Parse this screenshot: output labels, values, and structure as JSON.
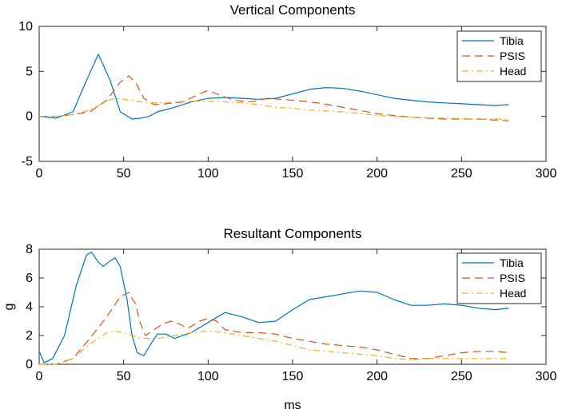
{
  "chart_data": [
    {
      "type": "line",
      "title": "Vertical Components",
      "xlabel": "",
      "ylabel": "",
      "xlim": [
        0,
        300
      ],
      "ylim": [
        -5,
        10
      ],
      "xticks": [
        0,
        50,
        100,
        150,
        200,
        250,
        300
      ],
      "yticks": [
        -5,
        0,
        5,
        10
      ],
      "grid": false,
      "legend_position": "top-right",
      "series": [
        {
          "name": "Tibia",
          "color": "#0072BD",
          "dash": "solid",
          "x": [
            0,
            10,
            20,
            28,
            35,
            42,
            48,
            55,
            60,
            65,
            70,
            80,
            90,
            100,
            110,
            120,
            130,
            140,
            150,
            160,
            170,
            180,
            190,
            200,
            210,
            220,
            230,
            240,
            250,
            260,
            270,
            278
          ],
          "y": [
            0,
            -0.2,
            0.5,
            4.0,
            6.9,
            4.0,
            0.5,
            -0.3,
            -0.2,
            0.0,
            0.5,
            1.0,
            1.6,
            2.0,
            2.1,
            2.0,
            1.9,
            2.0,
            2.5,
            3.0,
            3.2,
            3.1,
            2.8,
            2.4,
            2.0,
            1.8,
            1.6,
            1.5,
            1.4,
            1.3,
            1.2,
            1.3
          ]
        },
        {
          "name": "PSIS",
          "color": "#D95319",
          "dash": "dash",
          "x": [
            0,
            10,
            20,
            30,
            40,
            48,
            53,
            57,
            62,
            68,
            75,
            85,
            95,
            100,
            105,
            115,
            125,
            135,
            150,
            165,
            180,
            200,
            220,
            240,
            260,
            278
          ],
          "y": [
            0,
            0,
            0.2,
            0.5,
            1.8,
            3.8,
            4.5,
            3.8,
            2.0,
            1.3,
            1.4,
            1.6,
            2.5,
            2.9,
            2.5,
            1.8,
            1.6,
            2.0,
            1.8,
            1.5,
            1.0,
            0.3,
            -0.1,
            -0.3,
            -0.3,
            -0.5
          ]
        },
        {
          "name": "Head",
          "color": "#EDB120",
          "dash": "dashdot",
          "x": [
            0,
            10,
            20,
            30,
            40,
            45,
            50,
            60,
            70,
            80,
            90,
            100,
            110,
            120,
            130,
            140,
            150,
            160,
            170,
            180,
            200,
            220,
            240,
            260,
            278
          ],
          "y": [
            0,
            0,
            0.2,
            0.7,
            1.7,
            2.0,
            1.9,
            1.6,
            1.5,
            1.6,
            1.7,
            1.7,
            1.6,
            1.5,
            1.3,
            1.0,
            0.9,
            0.7,
            0.6,
            0.5,
            0.1,
            -0.1,
            -0.2,
            -0.3,
            -0.3
          ]
        }
      ]
    },
    {
      "type": "line",
      "title": "Resultant Components",
      "xlabel": "ms",
      "ylabel": "g",
      "xlim": [
        0,
        300
      ],
      "ylim": [
        0,
        8
      ],
      "xticks": [
        0,
        50,
        100,
        150,
        200,
        250,
        300
      ],
      "yticks": [
        0,
        2,
        4,
        6,
        8
      ],
      "grid": false,
      "legend_position": "top-right",
      "series": [
        {
          "name": "Tibia",
          "color": "#0072BD",
          "dash": "solid",
          "x": [
            0,
            3,
            8,
            15,
            22,
            28,
            31,
            35,
            38,
            42,
            45,
            48,
            52,
            55,
            58,
            62,
            66,
            70,
            75,
            80,
            90,
            100,
            110,
            120,
            130,
            140,
            150,
            160,
            170,
            180,
            190,
            200,
            210,
            220,
            230,
            240,
            250,
            260,
            270,
            278
          ],
          "y": [
            0.9,
            0.1,
            0.4,
            2.0,
            5.5,
            7.6,
            7.8,
            7.1,
            6.8,
            7.2,
            7.4,
            6.8,
            4.5,
            2.0,
            0.8,
            0.6,
            1.4,
            2.1,
            2.1,
            1.8,
            2.2,
            2.9,
            3.6,
            3.3,
            2.9,
            3.0,
            3.8,
            4.5,
            4.7,
            4.9,
            5.1,
            5.0,
            4.5,
            4.1,
            4.1,
            4.2,
            4.1,
            3.9,
            3.8,
            3.9
          ]
        },
        {
          "name": "PSIS",
          "color": "#D95319",
          "dash": "dash",
          "x": [
            0,
            10,
            20,
            30,
            40,
            48,
            53,
            57,
            60,
            63,
            68,
            73,
            78,
            83,
            88,
            95,
            100,
            105,
            110,
            120,
            130,
            140,
            150,
            160,
            170,
            180,
            190,
            200,
            210,
            220,
            230,
            240,
            250,
            260,
            270,
            278
          ],
          "y": [
            0,
            0,
            0.4,
            1.8,
            3.3,
            4.7,
            5.0,
            4.2,
            2.8,
            2.0,
            2.4,
            2.8,
            3.0,
            2.8,
            2.5,
            3.0,
            3.2,
            3.0,
            2.4,
            2.2,
            2.2,
            2.1,
            1.8,
            1.6,
            1.4,
            1.3,
            1.2,
            1.0,
            0.7,
            0.4,
            0.4,
            0.6,
            0.8,
            0.9,
            0.9,
            0.8
          ]
        },
        {
          "name": "Head",
          "color": "#EDB120",
          "dash": "dashdot",
          "x": [
            0,
            10,
            20,
            30,
            40,
            45,
            50,
            55,
            60,
            70,
            80,
            90,
            100,
            110,
            120,
            130,
            140,
            150,
            160,
            170,
            180,
            190,
            200,
            210,
            220,
            230,
            240,
            250,
            260,
            270,
            278
          ],
          "y": [
            0,
            0,
            0.4,
            1.4,
            2.2,
            2.3,
            2.2,
            2.0,
            1.8,
            1.8,
            2.0,
            2.2,
            2.3,
            2.2,
            2.0,
            1.8,
            1.6,
            1.3,
            1.0,
            0.9,
            0.8,
            0.7,
            0.6,
            0.4,
            0.3,
            0.4,
            0.4,
            0.4,
            0.4,
            0.4,
            0.4
          ]
        }
      ]
    }
  ]
}
